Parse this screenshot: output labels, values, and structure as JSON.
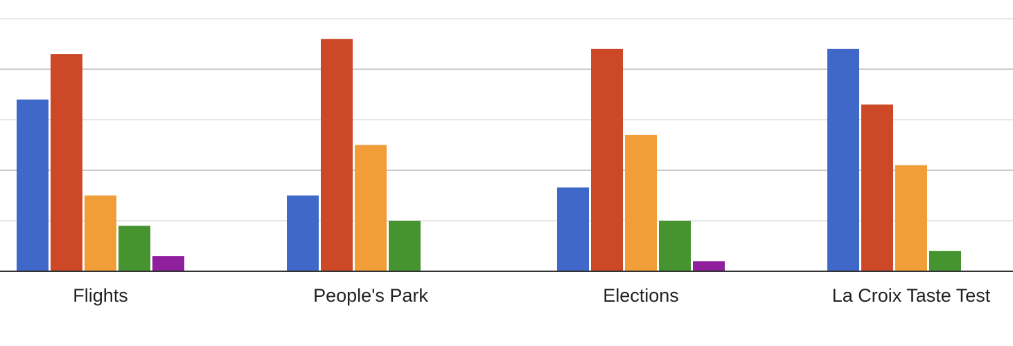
{
  "chart_data": {
    "type": "bar",
    "title": "",
    "xlabel": "",
    "ylabel": "",
    "categories": [
      "Flights",
      "People's Park",
      "Elections",
      "La Croix Taste Test"
    ],
    "ylim": [
      0,
      25
    ],
    "grid": true,
    "legend": "none",
    "series": [
      {
        "color": "#3f68c9",
        "values": [
          17,
          7.5,
          8.3,
          22
        ]
      },
      {
        "color": "#cc4826",
        "values": [
          21.5,
          23,
          22,
          16.5
        ]
      },
      {
        "color": "#f29e38",
        "values": [
          7.5,
          12.5,
          13.5,
          10.5
        ]
      },
      {
        "color": "#45942f",
        "values": [
          4.5,
          5,
          5,
          2
        ]
      },
      {
        "color": "#8f1f9c",
        "values": [
          1.5,
          0,
          1,
          0
        ]
      }
    ]
  }
}
